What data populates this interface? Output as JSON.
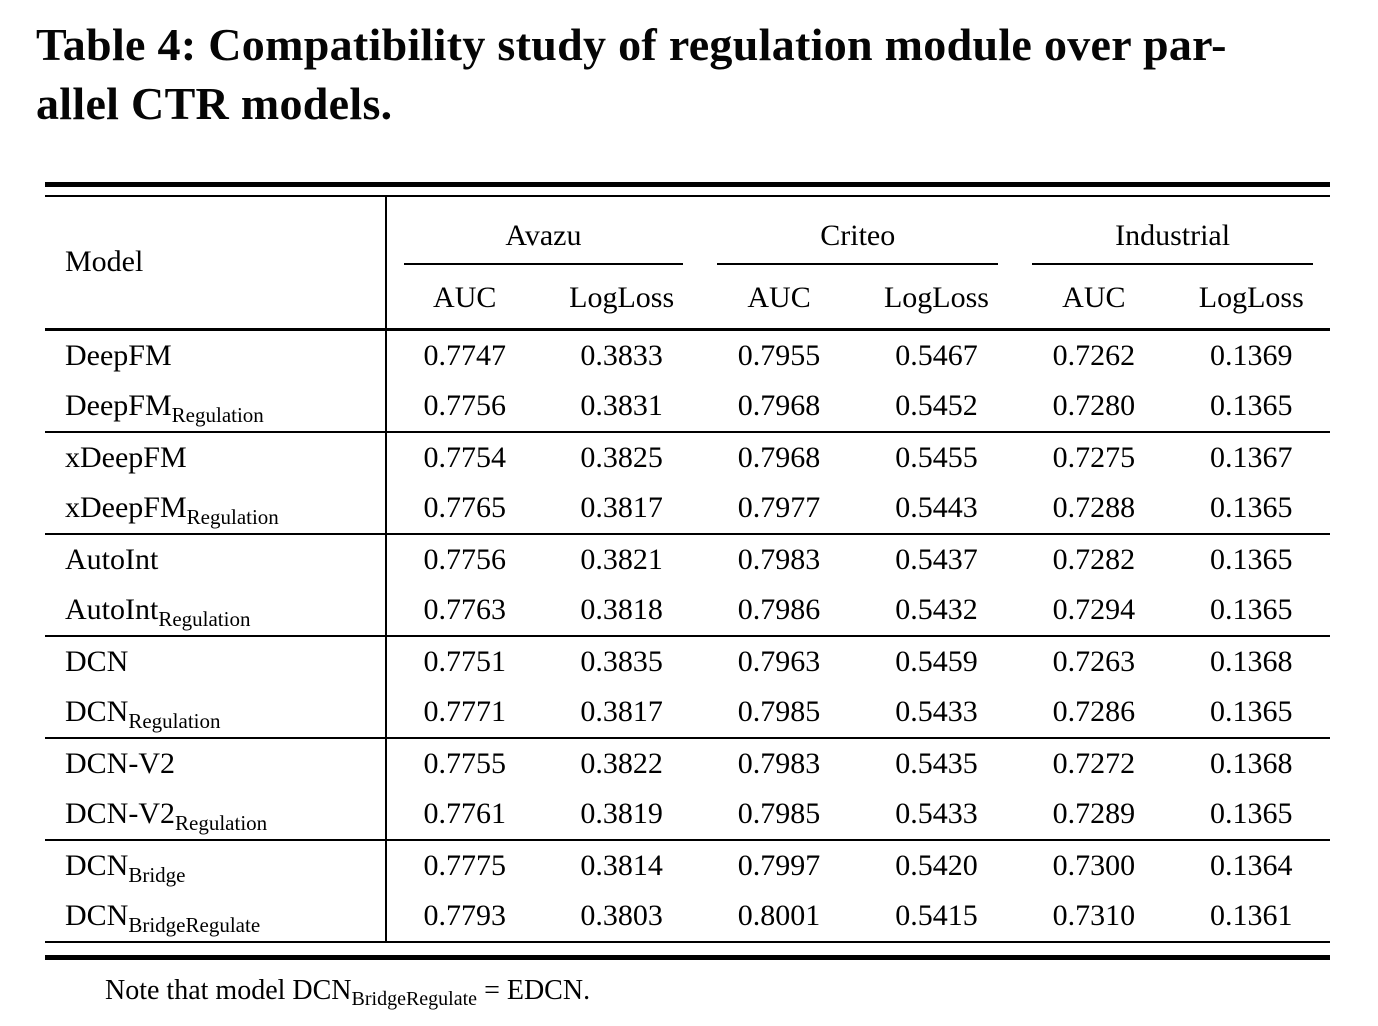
{
  "title": {
    "line1": "Table 4: Compatibility study of regulation module over par-",
    "line2": "allel CTR models."
  },
  "table": {
    "model_header": "Model",
    "groups": [
      {
        "label": "Avazu"
      },
      {
        "label": "Criteo"
      },
      {
        "label": "Industrial"
      }
    ],
    "subheaders": [
      "AUC",
      "LogLoss",
      "AUC",
      "LogLoss",
      "AUC",
      "LogLoss"
    ],
    "rows": [
      {
        "model_base": "DeepFM",
        "model_sub": "",
        "rule_above": false,
        "values": [
          "0.7747",
          "0.3833",
          "0.7955",
          "0.5467",
          "0.7262",
          "0.1369"
        ]
      },
      {
        "model_base": "DeepFM",
        "model_sub": "Regulation",
        "rule_above": false,
        "values": [
          "0.7756",
          "0.3831",
          "0.7968",
          "0.5452",
          "0.7280",
          "0.1365"
        ]
      },
      {
        "model_base": "xDeepFM",
        "model_sub": "",
        "rule_above": true,
        "values": [
          "0.7754",
          "0.3825",
          "0.7968",
          "0.5455",
          "0.7275",
          "0.1367"
        ]
      },
      {
        "model_base": "xDeepFM",
        "model_sub": "Regulation",
        "rule_above": false,
        "values": [
          "0.7765",
          "0.3817",
          "0.7977",
          "0.5443",
          "0.7288",
          "0.1365"
        ]
      },
      {
        "model_base": "AutoInt",
        "model_sub": "",
        "rule_above": true,
        "values": [
          "0.7756",
          "0.3821",
          "0.7983",
          "0.5437",
          "0.7282",
          "0.1365"
        ]
      },
      {
        "model_base": "AutoInt",
        "model_sub": "Regulation",
        "rule_above": false,
        "values": [
          "0.7763",
          "0.3818",
          "0.7986",
          "0.5432",
          "0.7294",
          "0.1365"
        ]
      },
      {
        "model_base": "DCN",
        "model_sub": "",
        "rule_above": true,
        "values": [
          "0.7751",
          "0.3835",
          "0.7963",
          "0.5459",
          "0.7263",
          "0.1368"
        ]
      },
      {
        "model_base": "DCN",
        "model_sub": "Regulation",
        "rule_above": false,
        "values": [
          "0.7771",
          "0.3817",
          "0.7985",
          "0.5433",
          "0.7286",
          "0.1365"
        ]
      },
      {
        "model_base": "DCN-V2",
        "model_sub": "",
        "rule_above": true,
        "values": [
          "0.7755",
          "0.3822",
          "0.7983",
          "0.5435",
          "0.7272",
          "0.1368"
        ]
      },
      {
        "model_base": "DCN-V2",
        "model_sub": "Regulation",
        "rule_above": false,
        "values": [
          "0.7761",
          "0.3819",
          "0.7985",
          "0.5433",
          "0.7289",
          "0.1365"
        ]
      },
      {
        "model_base": "DCN",
        "model_sub": "Bridge",
        "rule_above": true,
        "values": [
          "0.7775",
          "0.3814",
          "0.7997",
          "0.5420",
          "0.7300",
          "0.1364"
        ]
      },
      {
        "model_base": "DCN",
        "model_sub": "BridgeRegulate",
        "rule_above": false,
        "values": [
          "0.7793",
          "0.3803",
          "0.8001",
          "0.5415",
          "0.7310",
          "0.1361"
        ]
      }
    ]
  },
  "footnote": {
    "prefix": "Note that model DCN",
    "subscript": "BridgeRegulate",
    "suffix": " = EDCN."
  },
  "colors": {
    "text": "#000000",
    "background": "#ffffff",
    "rule": "#000000"
  }
}
